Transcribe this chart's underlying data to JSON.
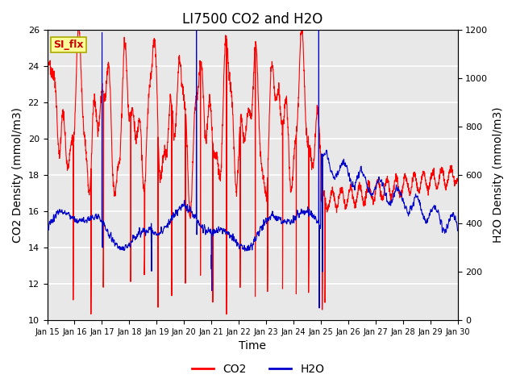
{
  "title": "LI7500 CO2 and H2O",
  "xlabel": "Time",
  "ylabel_left": "CO2 Density (mmol/m3)",
  "ylabel_right": "H2O Density (mmol/m3)",
  "ylim_left": [
    10,
    26
  ],
  "ylim_right": [
    0,
    1200
  ],
  "yticks_left": [
    10,
    12,
    14,
    16,
    18,
    20,
    22,
    24,
    26
  ],
  "yticks_right": [
    0,
    200,
    400,
    600,
    800,
    1000,
    1200
  ],
  "xticklabels": [
    "Jan 15",
    "Jan 16",
    "Jan 17",
    "Jan 18",
    "Jan 19",
    "Jan 20",
    "Jan 21",
    "Jan 22",
    "Jan 23",
    "Jan 24",
    "Jan 25",
    "Jan 26",
    "Jan 27",
    "Jan 28",
    "Jan 29",
    "Jan 30"
  ],
  "legend_labels": [
    "CO2",
    "H2O"
  ],
  "co2_color": "#FF0000",
  "h2o_color": "#0000CC",
  "background_color": "#E8E8E8",
  "annotation_text": "SI_flx",
  "annotation_color": "#CC0000",
  "annotation_bg": "#FFFF99",
  "grid_color": "white",
  "title_fontsize": 12,
  "axis_label_fontsize": 10,
  "tick_fontsize": 8
}
